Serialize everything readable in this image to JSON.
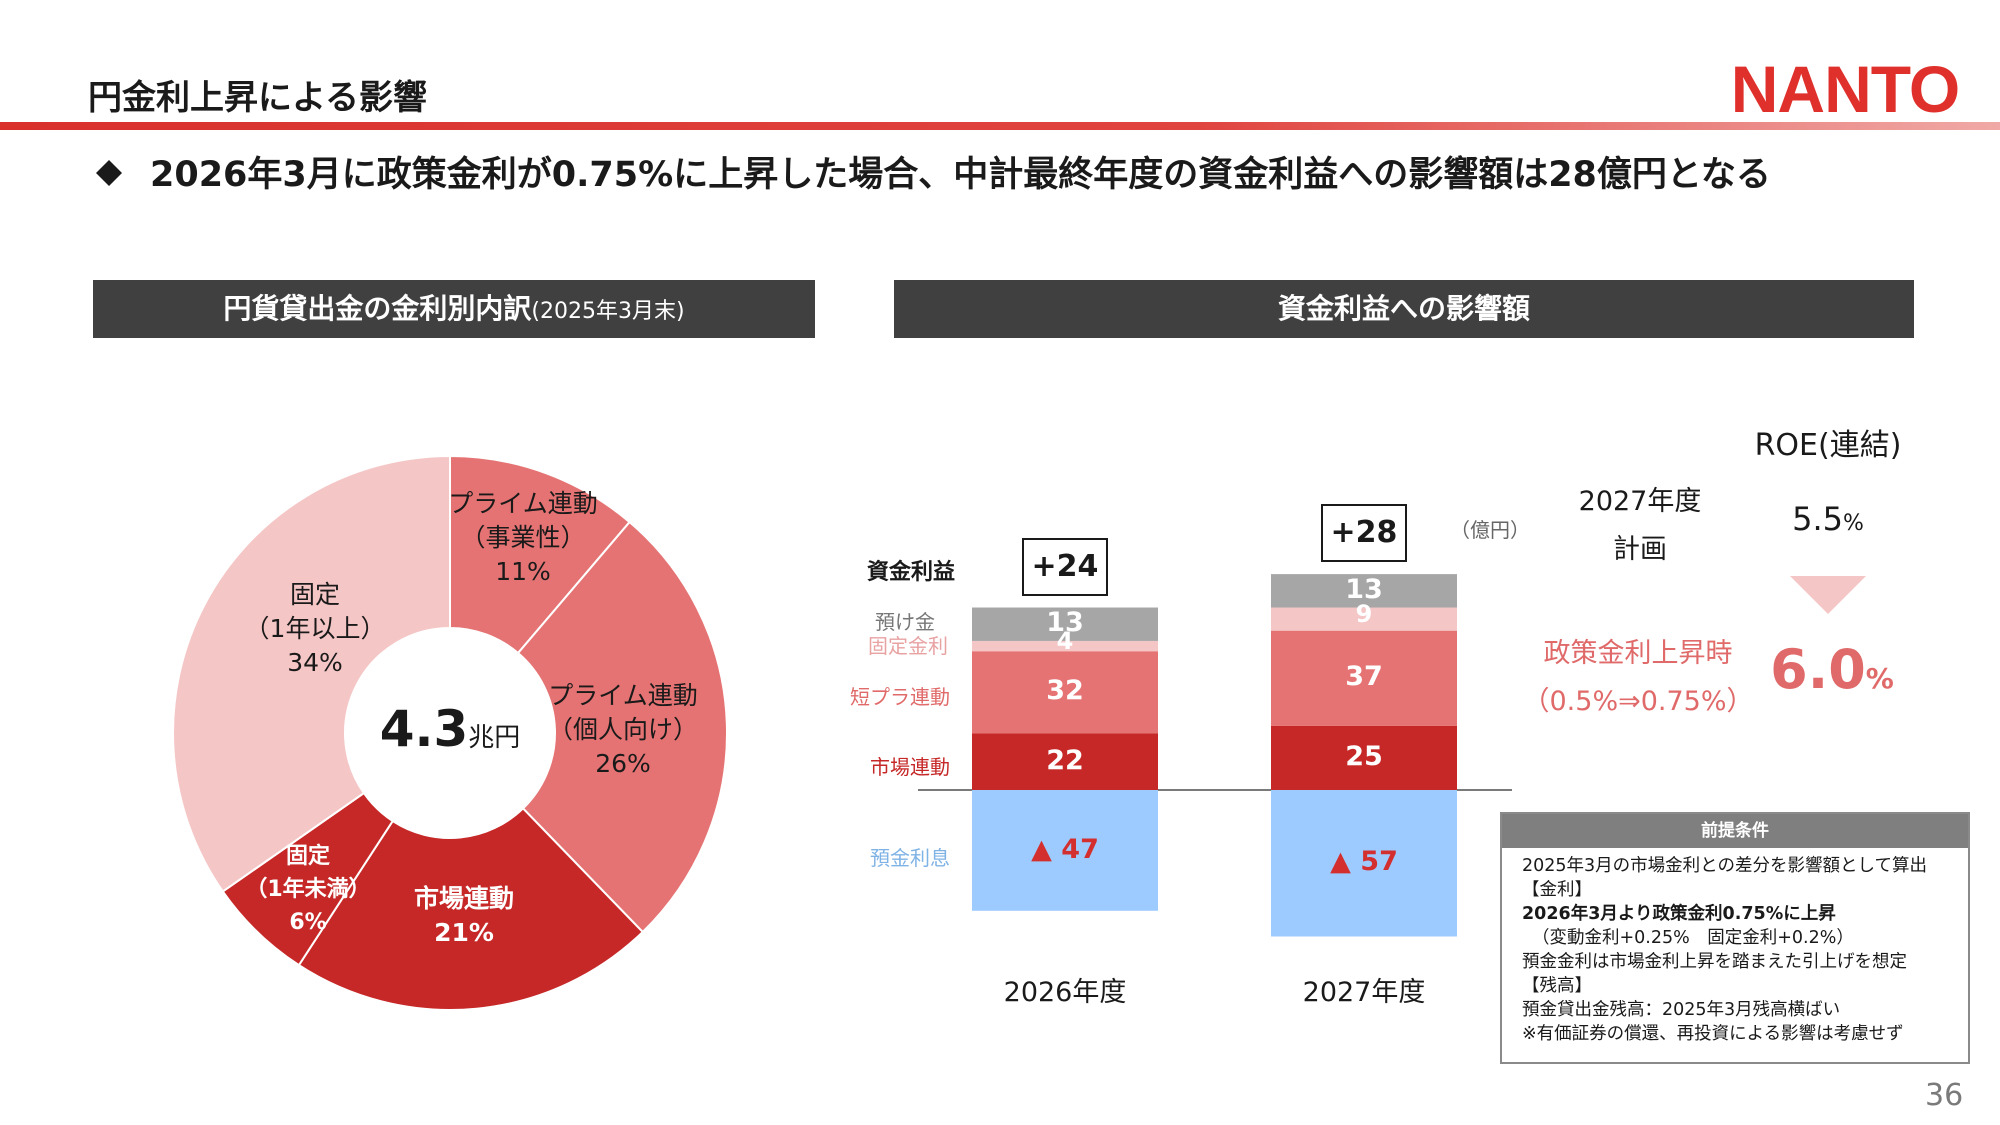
{
  "page_title": "円金利上昇による影響",
  "logo_text": "NANTO",
  "headline": "2026年3月に政策金利が0.75%に上昇した場合、中計最終年度の資金利益への影響額は28億円となる",
  "left_panel": {
    "title": "円貨貸出金の金利別内訳",
    "title_sub": "(2025年3月末)",
    "total_value": "4.3",
    "total_unit": "兆円",
    "segments": [
      {
        "line1": "プライム連動",
        "line2": "（事業性）",
        "pct": "11%",
        "value": 11,
        "color": "#e57373"
      },
      {
        "line1": "プライム連動",
        "line2": "（個人向け）",
        "pct": "26%",
        "value": 26,
        "color": "#e57373"
      },
      {
        "line1": "市場連動",
        "line2": "",
        "pct": "21%",
        "value": 21,
        "color": "#c62828"
      },
      {
        "line1": "固定",
        "line2": "（1年未満）",
        "pct": "6%",
        "value": 6,
        "color": "#c62828"
      },
      {
        "line1": "固定",
        "line2": "（1年以上）",
        "pct": "34%",
        "value": 34,
        "color": "#f5c6c6"
      }
    ]
  },
  "right_panel": {
    "title": "資金利益への影響額",
    "unit": "（億円）",
    "row_labels": {
      "profit": "資金利益",
      "deposit_fixed_1": "預け金",
      "deposit_fixed_2": "固定金利",
      "short_prime": "短プラ連動",
      "market": "市場連動",
      "deposit_interest": "預金利息"
    },
    "roe": {
      "title": "ROE(連結)",
      "plan_label_1": "2027年度",
      "plan_label_2": "計画",
      "plan_value": "5.5",
      "plan_unit": "%",
      "hike_label_1": "政策金利上昇時",
      "hike_label_2": "（0.5%⇒0.75%）",
      "hike_value": "6.0",
      "hike_unit": "%"
    },
    "notes": {
      "title": "前提条件",
      "l1": "2025年3月の市場金利との差分を影響額として算出",
      "l2": "【金利】",
      "l3": "2026年3月より政策金利0.75%に上昇",
      "l4": "（変動金利+0.25%　固定金利+0.2%）",
      "l5": "預金金利は市場金利上昇を踏まえた引上げを想定",
      "l6": "【残高】",
      "l7": "預金貸出金残高：2025年3月残高横ばい",
      "l8": "※有価証券の償還、再投資による影響は考慮せず"
    }
  },
  "chart_data": {
    "type": "bar",
    "stacked": true,
    "categories": [
      "2026年度",
      "2027年度"
    ],
    "totals": [
      "+24",
      "+28"
    ],
    "series": [
      {
        "name": "市場連動",
        "values": [
          22,
          25
        ],
        "labels": [
          "22",
          "25"
        ],
        "color": "#c62828"
      },
      {
        "name": "短プラ連動",
        "values": [
          32,
          37
        ],
        "labels": [
          "32",
          "37"
        ],
        "color": "#e57373"
      },
      {
        "name": "固定金利",
        "values": [
          4,
          9
        ],
        "labels": [
          "4",
          "9"
        ],
        "color": "#f5c6c6"
      },
      {
        "name": "預け金",
        "values": [
          13,
          13
        ],
        "labels": [
          "13",
          "13"
        ],
        "color": "#a6a6a6"
      },
      {
        "name": "預金利息",
        "values": [
          -47,
          -57
        ],
        "labels": [
          "▲ 47",
          "▲ 57"
        ],
        "color": "#9ecbff"
      }
    ]
  },
  "page_number": "36"
}
